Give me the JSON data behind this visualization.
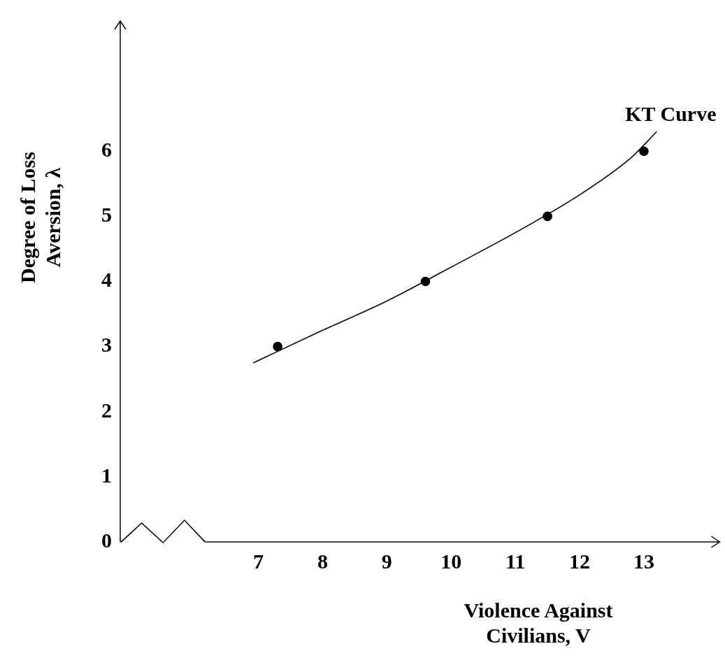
{
  "chart_data": {
    "type": "scatter",
    "xlabel": "Violence Against Civilians, V",
    "ylabel": "Degree of Loss Aversion, λ",
    "xlim": [
      4.85,
      14.18
    ],
    "xticks": [
      7,
      8,
      9,
      10,
      11,
      12,
      13
    ],
    "ylim": [
      0,
      8
    ],
    "yticks": [
      0,
      1,
      2,
      3,
      4,
      5,
      6
    ],
    "grid": false,
    "legend": false,
    "marker": "circle",
    "series": [
      {
        "type": "scatter",
        "color": "#000000",
        "x": [
          7.3,
          9.6,
          11.5,
          13
        ],
        "values": [
          3,
          4,
          5,
          6
        ]
      },
      {
        "type": "line",
        "name": "KT Curve",
        "color": "#000000",
        "marker": "none",
        "x": [
          6.92,
          8,
          9,
          10,
          11,
          12,
          12.8,
          13.2
        ],
        "values": [
          2.75,
          3.25,
          3.7,
          4.22,
          4.75,
          5.33,
          5.9,
          6.3
        ]
      }
    ]
  }
}
